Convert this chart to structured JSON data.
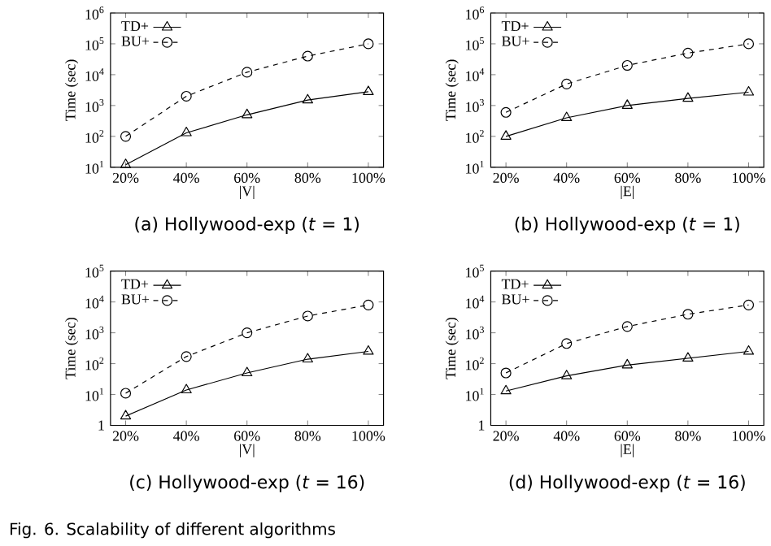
{
  "chart_data": [
    {
      "type": "line",
      "title": "(a) Hollywood-exp (*t* = 1)",
      "xlabel": "|V|",
      "ylabel": "Time (sec)",
      "categories": [
        "20%",
        "40%",
        "60%",
        "80%",
        "100%"
      ],
      "log": "y",
      "ylim": [
        10,
        1000000
      ],
      "yticks": [
        {
          "value": 10,
          "label": "10$^{1}$"
        },
        {
          "value": 100,
          "label": "10$^{2}$"
        },
        {
          "value": 1000,
          "label": "10$^{3}$"
        },
        {
          "value": 10000,
          "label": "10$^{4}$"
        },
        {
          "value": 100000,
          "label": "10$^{5}$"
        },
        {
          "value": 1000000,
          "label": "10$^{6}$"
        }
      ],
      "legend": "top left",
      "grid": false,
      "series": [
        {
          "name": "TD+",
          "color": "#000000",
          "marker": "triangle",
          "line_style": "solid",
          "values": [
            12,
            130,
            500,
            1500,
            2800
          ]
        },
        {
          "name": "BU+",
          "color": "#000000",
          "marker": "circle",
          "line_style": "dashed",
          "values": [
            100,
            2000,
            12000,
            40000,
            100000
          ]
        }
      ]
    },
    {
      "type": "line",
      "title": "(b) Hollywood-exp (*t* = 1)",
      "xlabel": "|E|",
      "ylabel": "Time (sec)",
      "categories": [
        "20%",
        "40%",
        "60%",
        "80%",
        "100%"
      ],
      "log": "y",
      "ylim": [
        10,
        1000000
      ],
      "yticks": [
        {
          "value": 10,
          "label": "10$^{1}$"
        },
        {
          "value": 100,
          "label": "10$^{2}$"
        },
        {
          "value": 1000,
          "label": "10$^{3}$"
        },
        {
          "value": 10000,
          "label": "10$^{4}$"
        },
        {
          "value": 100000,
          "label": "10$^{5}$"
        },
        {
          "value": 1000000,
          "label": "10$^{6}$"
        }
      ],
      "legend": "top left",
      "grid": false,
      "series": [
        {
          "name": "TD+",
          "color": "#000000",
          "marker": "triangle",
          "line_style": "solid",
          "values": [
            100,
            400,
            1000,
            1700,
            2700
          ]
        },
        {
          "name": "BU+",
          "color": "#000000",
          "marker": "circle",
          "line_style": "dashed",
          "values": [
            600,
            5000,
            20000,
            50000,
            100000
          ]
        }
      ]
    },
    {
      "type": "line",
      "title": "(c) Hollywood-exp (*t* = 16)",
      "xlabel": "|V|",
      "ylabel": "Time (sec)",
      "categories": [
        "20%",
        "40%",
        "60%",
        "80%",
        "100%"
      ],
      "log": "y",
      "ylim": [
        1,
        100000
      ],
      "yticks": [
        1,
        {
          "value": 10,
          "label": "10$^{1}$"
        },
        {
          "value": 100,
          "label": "10$^{2}$"
        },
        {
          "value": 1000,
          "label": "10$^{3}$"
        },
        {
          "value": 10000,
          "label": "10$^{4}$"
        },
        {
          "value": 100000,
          "label": "10$^{5}$"
        }
      ],
      "legend": "top left",
      "grid": false,
      "series": [
        {
          "name": "TD+",
          "color": "#000000",
          "marker": "triangle",
          "line_style": "solid",
          "values": [
            2,
            14,
            50,
            140,
            250
          ]
        },
        {
          "name": "BU+",
          "color": "#000000",
          "marker": "circle",
          "line_style": "dashed",
          "values": [
            11,
            170,
            1000,
            3500,
            8000
          ]
        }
      ]
    },
    {
      "type": "line",
      "title": "(d) Hollywood-exp (*t* = 16)",
      "xlabel": "|E|",
      "ylabel": "Time (sec)",
      "categories": [
        "20%",
        "40%",
        "60%",
        "80%",
        "100%"
      ],
      "log": "y",
      "ylim": [
        1,
        100000
      ],
      "yticks": [
        1,
        {
          "value": 10,
          "label": "10$^{1}$"
        },
        {
          "value": 100,
          "label": "10$^{2}$"
        },
        {
          "value": 1000,
          "label": "10$^{3}$"
        },
        {
          "value": 10000,
          "label": "10$^{4}$"
        },
        {
          "value": 100000,
          "label": "10$^{5}$"
        }
      ],
      "legend": "top left",
      "grid": false,
      "annotations": [
        "Fig. 6. Scalability of different algorithms"
      ],
      "series": [
        {
          "name": "TD+",
          "color": "#000000",
          "marker": "triangle",
          "line_style": "solid",
          "values": [
            13,
            40,
            90,
            150,
            250
          ]
        },
        {
          "name": "BU+",
          "color": "#000000",
          "marker": "circle",
          "line_style": "dashed",
          "values": [
            50,
            450,
            1600,
            4000,
            8000
          ]
        }
      ]
    }
  ]
}
